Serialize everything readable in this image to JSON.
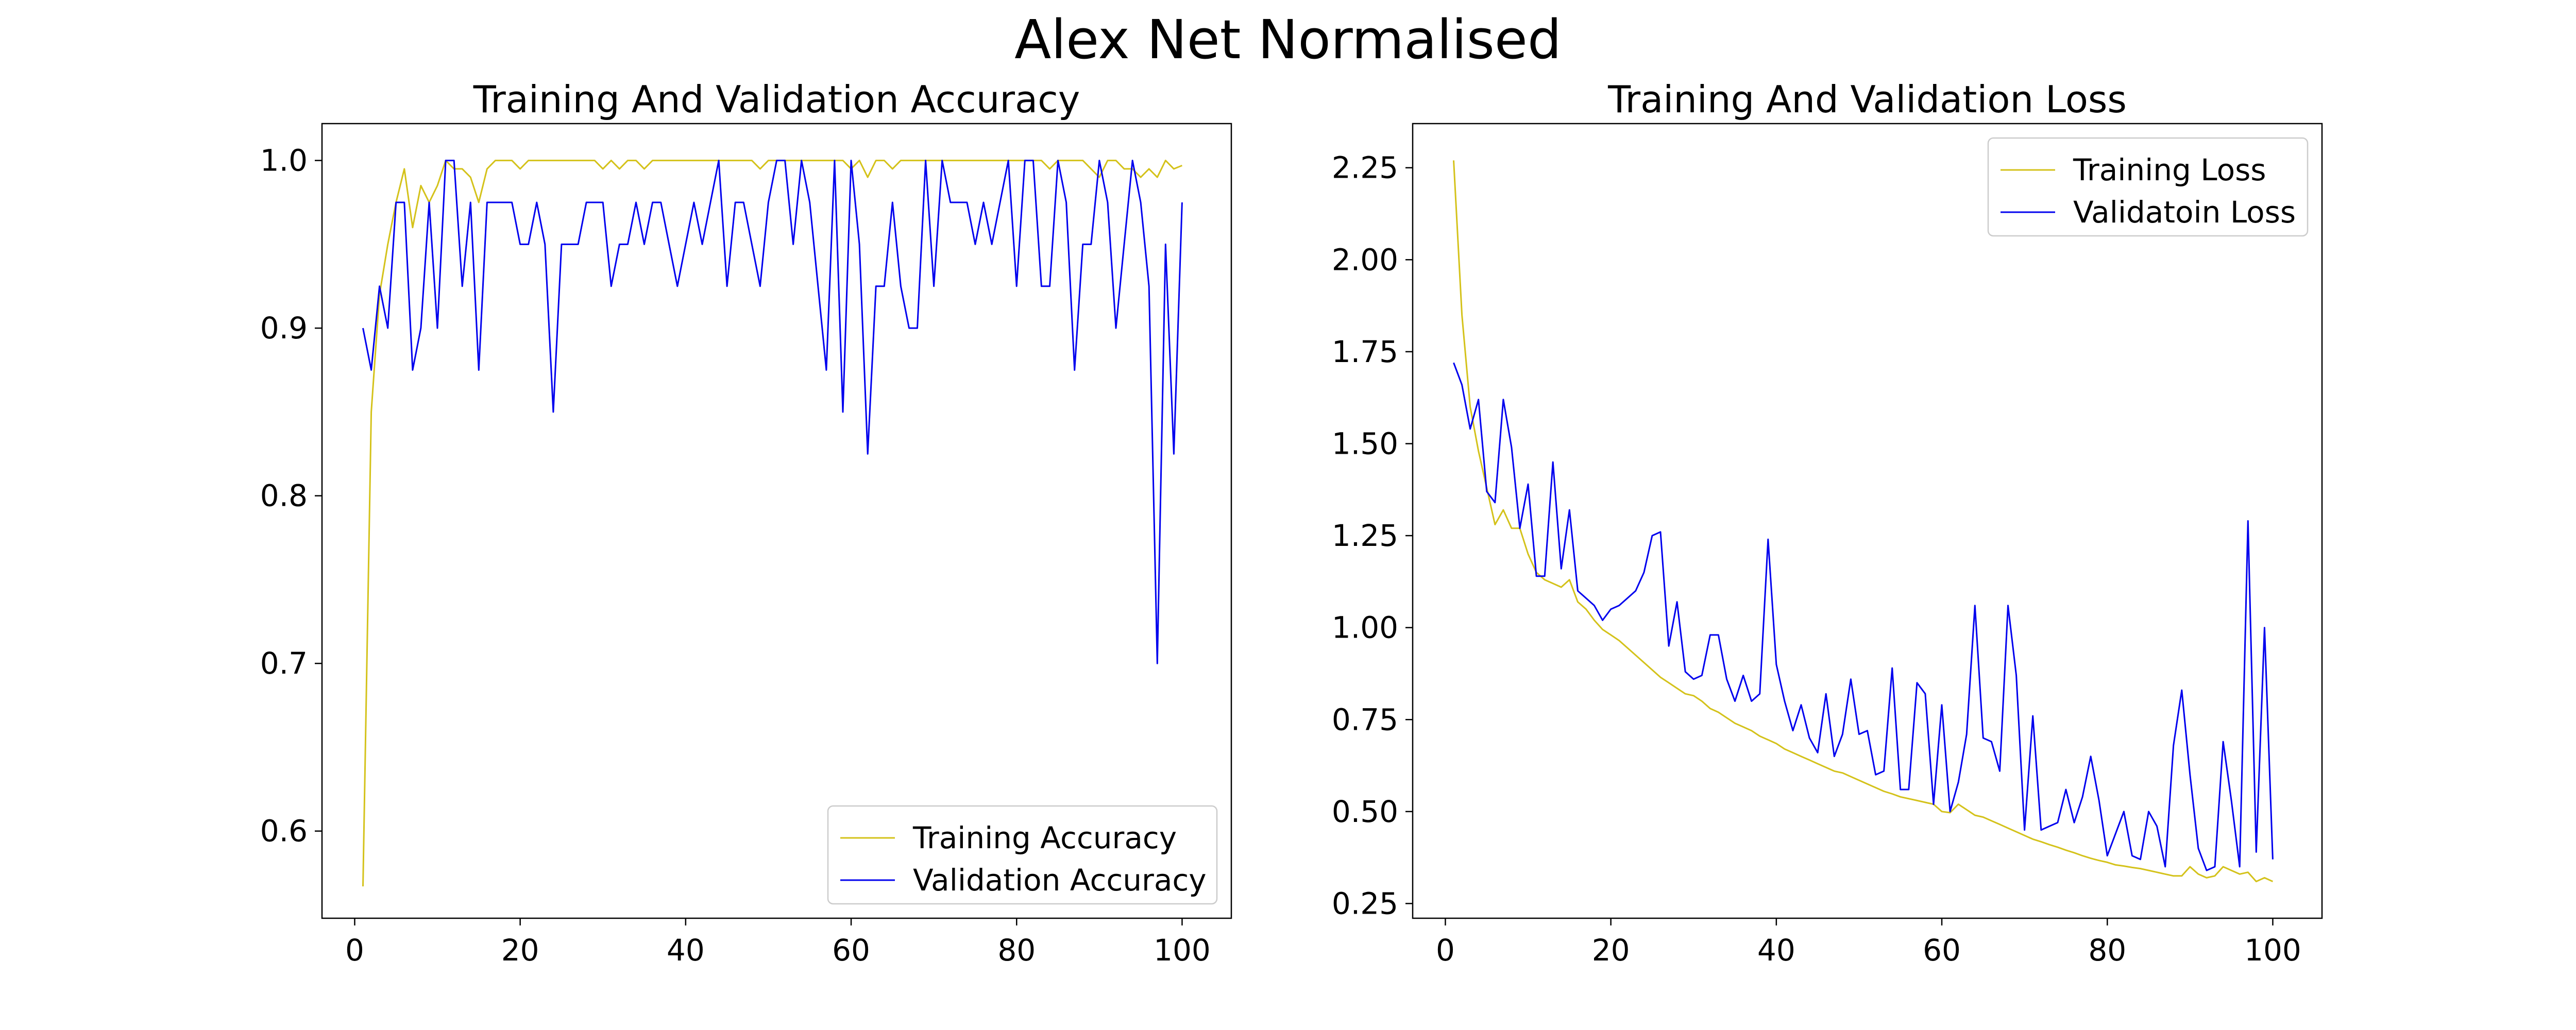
{
  "figure": {
    "title": "Alex Net Normalised"
  },
  "colors": {
    "training": "#d4c21a",
    "validation": "#0000ee"
  },
  "chart_data": [
    {
      "type": "line",
      "title": "Training And Validation Accuracy",
      "xlabel": "",
      "ylabel": "",
      "xlim": [
        -3.95,
        105.95
      ],
      "ylim": [
        0.548,
        1.022
      ],
      "xticks": [
        0,
        20,
        40,
        60,
        80,
        100
      ],
      "yticks": [
        0.6,
        0.7,
        0.8,
        0.9,
        1.0
      ],
      "xtick_labels": [
        "0",
        "20",
        "40",
        "60",
        "80",
        "100"
      ],
      "ytick_labels": [
        "0.6",
        "0.7",
        "0.8",
        "0.9",
        "1.0"
      ],
      "legend_position": "lower-right",
      "grid": false,
      "x": [
        1,
        2,
        3,
        4,
        5,
        6,
        7,
        8,
        9,
        10,
        11,
        12,
        13,
        14,
        15,
        16,
        17,
        18,
        19,
        20,
        21,
        22,
        23,
        24,
        25,
        26,
        27,
        28,
        29,
        30,
        31,
        32,
        33,
        34,
        35,
        36,
        37,
        38,
        39,
        40,
        41,
        42,
        43,
        44,
        45,
        46,
        47,
        48,
        49,
        50,
        51,
        52,
        53,
        54,
        55,
        56,
        57,
        58,
        59,
        60,
        61,
        62,
        63,
        64,
        65,
        66,
        67,
        68,
        69,
        70,
        71,
        72,
        73,
        74,
        75,
        76,
        77,
        78,
        79,
        80,
        81,
        82,
        83,
        84,
        85,
        86,
        87,
        88,
        89,
        90,
        91,
        92,
        93,
        94,
        95,
        96,
        97,
        98,
        99,
        100
      ],
      "series": [
        {
          "name": "Training Accuracy",
          "color_key": "training",
          "values": [
            0.567,
            0.85,
            0.92,
            0.95,
            0.975,
            0.995,
            0.96,
            0.985,
            0.975,
            0.985,
            1.0,
            0.995,
            0.995,
            0.99,
            0.975,
            0.995,
            1.0,
            1.0,
            1.0,
            0.995,
            1.0,
            1.0,
            1.0,
            1.0,
            1.0,
            1.0,
            1.0,
            1.0,
            1.0,
            0.995,
            1.0,
            0.995,
            1.0,
            1.0,
            0.995,
            1.0,
            1.0,
            1.0,
            1.0,
            1.0,
            1.0,
            1.0,
            1.0,
            1.0,
            1.0,
            1.0,
            1.0,
            1.0,
            0.995,
            1.0,
            1.0,
            1.0,
            1.0,
            1.0,
            1.0,
            1.0,
            1.0,
            1.0,
            1.0,
            0.995,
            1.0,
            0.99,
            1.0,
            1.0,
            0.995,
            1.0,
            1.0,
            1.0,
            1.0,
            1.0,
            1.0,
            1.0,
            1.0,
            1.0,
            1.0,
            1.0,
            1.0,
            1.0,
            1.0,
            1.0,
            1.0,
            1.0,
            1.0,
            0.995,
            1.0,
            1.0,
            1.0,
            1.0,
            0.995,
            0.99,
            1.0,
            1.0,
            0.995,
            0.995,
            0.99,
            0.995,
            0.99,
            1.0,
            0.995,
            0.997
          ]
        },
        {
          "name": "Validation Accuracy",
          "color_key": "validation",
          "values": [
            0.9,
            0.875,
            0.925,
            0.9,
            0.975,
            0.975,
            0.875,
            0.9,
            0.975,
            0.9,
            1.0,
            1.0,
            0.925,
            0.975,
            0.875,
            0.975,
            0.975,
            0.975,
            0.975,
            0.95,
            0.95,
            0.975,
            0.95,
            0.85,
            0.95,
            0.95,
            0.95,
            0.975,
            0.975,
            0.975,
            0.925,
            0.95,
            0.95,
            0.975,
            0.95,
            0.975,
            0.975,
            0.95,
            0.925,
            0.95,
            0.975,
            0.95,
            0.975,
            1.0,
            0.925,
            0.975,
            0.975,
            0.95,
            0.925,
            0.975,
            1.0,
            1.0,
            0.95,
            1.0,
            0.975,
            0.925,
            0.875,
            1.0,
            0.85,
            1.0,
            0.95,
            0.825,
            0.925,
            0.925,
            0.975,
            0.925,
            0.9,
            0.9,
            1.0,
            0.925,
            1.0,
            0.975,
            0.975,
            0.975,
            0.95,
            0.975,
            0.95,
            0.975,
            1.0,
            0.925,
            1.0,
            1.0,
            0.925,
            0.925,
            1.0,
            0.975,
            0.875,
            0.95,
            0.95,
            1.0,
            0.975,
            0.9,
            0.95,
            1.0,
            0.975,
            0.925,
            0.7,
            0.95,
            0.825,
            0.975
          ]
        }
      ]
    },
    {
      "type": "line",
      "title": "Training And Validation Loss",
      "xlabel": "",
      "ylabel": "",
      "xlim": [
        -3.95,
        105.95
      ],
      "ylim": [
        0.21,
        2.37
      ],
      "xticks": [
        0,
        20,
        40,
        60,
        80,
        100
      ],
      "yticks": [
        0.25,
        0.5,
        0.75,
        1.0,
        1.25,
        1.5,
        1.75,
        2.0,
        2.25
      ],
      "xtick_labels": [
        "0",
        "20",
        "40",
        "60",
        "80",
        "100"
      ],
      "ytick_labels": [
        "0.25",
        "0.50",
        "0.75",
        "1.00",
        "1.25",
        "1.50",
        "1.75",
        "2.00",
        "2.25"
      ],
      "legend_position": "upper-right",
      "grid": false,
      "x": [
        1,
        2,
        3,
        4,
        5,
        6,
        7,
        8,
        9,
        10,
        11,
        12,
        13,
        14,
        15,
        16,
        17,
        18,
        19,
        20,
        21,
        22,
        23,
        24,
        25,
        26,
        27,
        28,
        29,
        30,
        31,
        32,
        33,
        34,
        35,
        36,
        37,
        38,
        39,
        40,
        41,
        42,
        43,
        44,
        45,
        46,
        47,
        48,
        49,
        50,
        51,
        52,
        53,
        54,
        55,
        56,
        57,
        58,
        59,
        60,
        61,
        62,
        63,
        64,
        65,
        66,
        67,
        68,
        69,
        70,
        71,
        72,
        73,
        74,
        75,
        76,
        77,
        78,
        79,
        80,
        81,
        82,
        83,
        84,
        85,
        86,
        87,
        88,
        89,
        90,
        91,
        92,
        93,
        94,
        95,
        96,
        97,
        98,
        99,
        100
      ],
      "series": [
        {
          "name": "Training Loss",
          "color_key": "training",
          "values": [
            2.27,
            1.85,
            1.6,
            1.48,
            1.38,
            1.28,
            1.32,
            1.27,
            1.27,
            1.2,
            1.15,
            1.13,
            1.12,
            1.11,
            1.13,
            1.07,
            1.05,
            1.02,
            0.995,
            0.98,
            0.965,
            0.945,
            0.925,
            0.905,
            0.885,
            0.865,
            0.85,
            0.835,
            0.82,
            0.815,
            0.8,
            0.78,
            0.77,
            0.755,
            0.74,
            0.73,
            0.72,
            0.705,
            0.695,
            0.685,
            0.67,
            0.66,
            0.65,
            0.64,
            0.63,
            0.62,
            0.61,
            0.605,
            0.595,
            0.585,
            0.575,
            0.565,
            0.555,
            0.548,
            0.54,
            0.535,
            0.53,
            0.525,
            0.52,
            0.5,
            0.497,
            0.52,
            0.505,
            0.49,
            0.485,
            0.475,
            0.465,
            0.455,
            0.445,
            0.435,
            0.425,
            0.418,
            0.41,
            0.403,
            0.395,
            0.388,
            0.38,
            0.373,
            0.367,
            0.362,
            0.355,
            0.352,
            0.348,
            0.345,
            0.34,
            0.335,
            0.33,
            0.325,
            0.325,
            0.35,
            0.33,
            0.32,
            0.325,
            0.35,
            0.34,
            0.33,
            0.335,
            0.31,
            0.32,
            0.31
          ]
        },
        {
          "name": "Validatoin Loss",
          "color_key": "validation",
          "values": [
            1.72,
            1.66,
            1.54,
            1.62,
            1.37,
            1.34,
            1.62,
            1.49,
            1.27,
            1.39,
            1.14,
            1.14,
            1.45,
            1.16,
            1.32,
            1.1,
            1.08,
            1.06,
            1.02,
            1.05,
            1.06,
            1.08,
            1.1,
            1.15,
            1.25,
            1.26,
            0.95,
            1.07,
            0.88,
            0.86,
            0.87,
            0.98,
            0.98,
            0.86,
            0.8,
            0.87,
            0.8,
            0.82,
            1.24,
            0.9,
            0.8,
            0.72,
            0.79,
            0.7,
            0.66,
            0.82,
            0.65,
            0.71,
            0.86,
            0.71,
            0.72,
            0.6,
            0.61,
            0.89,
            0.56,
            0.56,
            0.85,
            0.82,
            0.52,
            0.79,
            0.5,
            0.58,
            0.71,
            1.06,
            0.7,
            0.69,
            0.61,
            1.06,
            0.87,
            0.45,
            0.76,
            0.45,
            0.46,
            0.47,
            0.56,
            0.47,
            0.54,
            0.65,
            0.53,
            0.38,
            0.44,
            0.5,
            0.38,
            0.37,
            0.5,
            0.46,
            0.35,
            0.68,
            0.83,
            0.6,
            0.4,
            0.34,
            0.35,
            0.69,
            0.53,
            0.35,
            1.29,
            0.39,
            1.0,
            0.37
          ]
        }
      ]
    }
  ]
}
